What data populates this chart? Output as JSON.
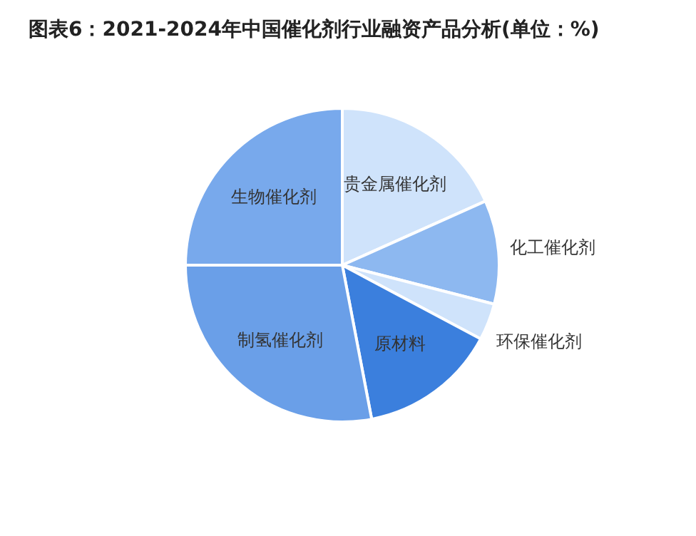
{
  "chart_data": {
    "type": "pie",
    "title": "图表6：2021-2024年中国催化剂行业融资产品分析(单位：%)",
    "categories": [
      "贵金属催化剂",
      "化工催化剂",
      "环保催化剂",
      "原材料",
      "制氢催化剂",
      "生物催化剂"
    ],
    "values": [
      18.3,
      10.7,
      3.8,
      14.2,
      28.0,
      25.0
    ],
    "colors": [
      "#cfe3fb",
      "#8db8f0",
      "#cfe3fb",
      "#3b7fdd",
      "#6a9fe8",
      "#78a9ec"
    ]
  }
}
